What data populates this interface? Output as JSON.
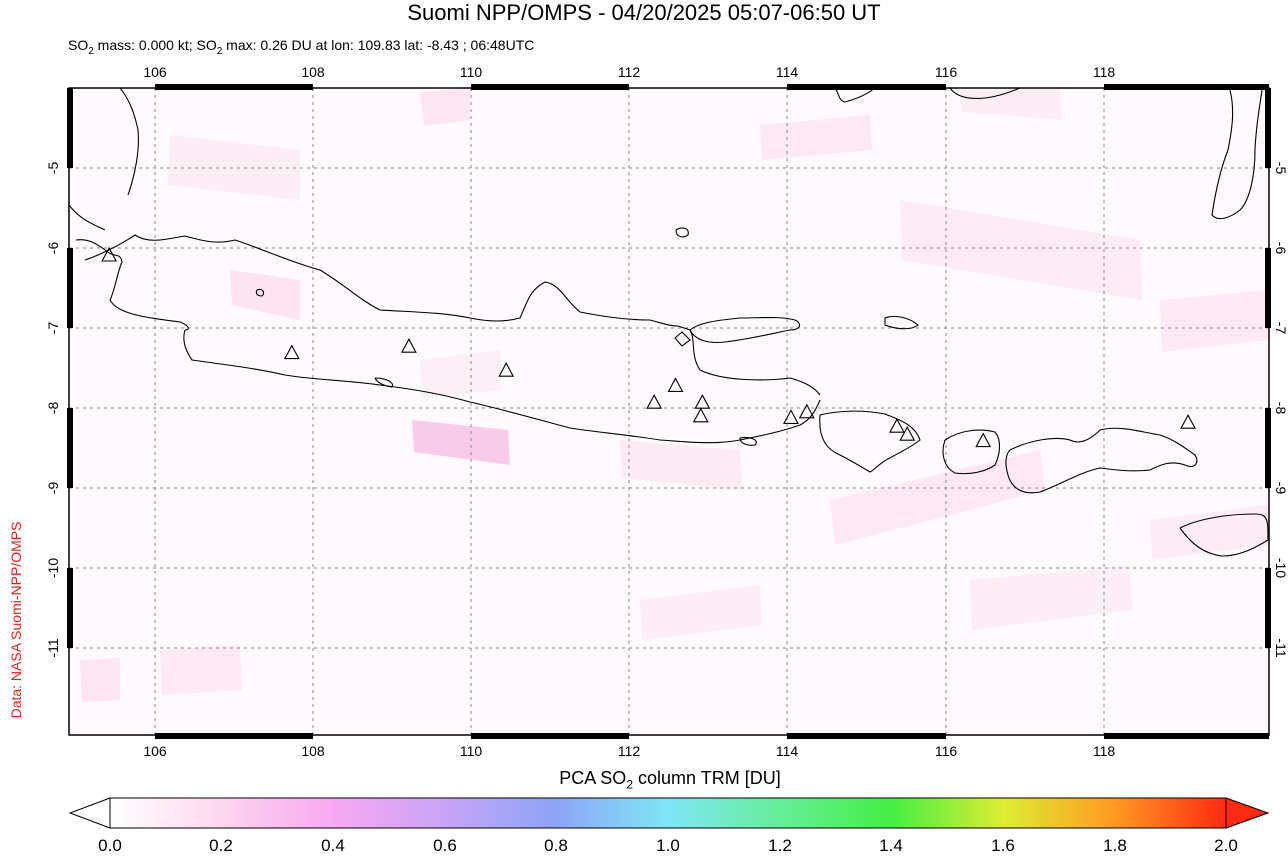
{
  "title": "Suomi NPP/OMPS - 04/20/2025 05:07-06:50 UT",
  "subtitle": {
    "mass_label": "SO",
    "mass_sub": "2",
    "mass_text": " mass: 0.000 kt; SO",
    "max_sub": "2",
    "max_text": " max: 0.26 DU at lon: 109.83 lat: -8.43 ; 06:48UTC"
  },
  "credit": "Data: NASA Suomi-NPP/OMPS",
  "map": {
    "lon_ticks": [
      "106",
      "108",
      "110",
      "112",
      "114",
      "116",
      "118"
    ],
    "lat_ticks": [
      "-5",
      "-6",
      "-7",
      "-8",
      "-9",
      "-10",
      "-11"
    ],
    "volcano_icon": "triangle-outline",
    "volcanoes": [
      {
        "lon": 105.42,
        "lat": -6.1
      },
      {
        "lon": 107.73,
        "lat": -7.32
      },
      {
        "lon": 109.21,
        "lat": -7.24
      },
      {
        "lon": 110.44,
        "lat": -7.54
      },
      {
        "lon": 112.31,
        "lat": -7.94
      },
      {
        "lon": 112.58,
        "lat": -7.73
      },
      {
        "lon": 112.92,
        "lat": -7.94
      },
      {
        "lon": 112.9,
        "lat": -8.11
      },
      {
        "lon": 114.04,
        "lat": -8.13
      },
      {
        "lon": 114.24,
        "lat": -8.06
      },
      {
        "lon": 115.38,
        "lat": -8.24
      },
      {
        "lon": 115.51,
        "lat": -8.34
      },
      {
        "lon": 116.47,
        "lat": -8.42
      },
      {
        "lon": 119.06,
        "lat": -8.19
      }
    ],
    "colors": {
      "coast": "#000000",
      "grid": "#888888",
      "so2_low": "#fde4f2"
    }
  },
  "colorbar": {
    "title_pre": "PCA SO",
    "title_sub": "2",
    "title_post": " column TRM [DU]",
    "labels": [
      "0.0",
      "0.2",
      "0.4",
      "0.6",
      "0.8",
      "1.0",
      "1.2",
      "1.4",
      "1.6",
      "1.8",
      "2.0"
    ],
    "range": [
      0.0,
      2.0
    ],
    "stops": [
      "#ffffff",
      "#fcd6ee",
      "#f8a8f2",
      "#c8a4f6",
      "#8ea4f6",
      "#7fe6f6",
      "#66ee99",
      "#44ee44",
      "#ddee33",
      "#ff9922",
      "#ff2a12"
    ]
  }
}
